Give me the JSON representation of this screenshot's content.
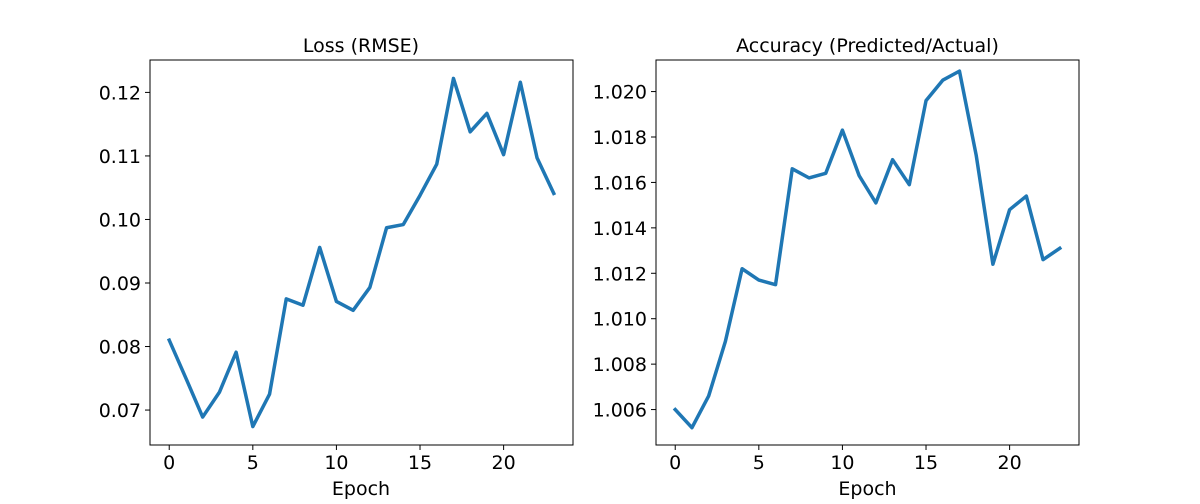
{
  "chart_data": [
    {
      "type": "line",
      "title": "Loss (RMSE)",
      "xlabel": "Epoch",
      "ylabel": "",
      "xlim": [
        -1.15,
        24.15
      ],
      "ylim": [
        0.0645,
        0.1251
      ],
      "xticks": [
        0,
        5,
        10,
        15,
        20
      ],
      "xtick_labels": [
        "0",
        "5",
        "10",
        "15",
        "20"
      ],
      "yticks": [
        0.07,
        0.08,
        0.09,
        0.1,
        0.11,
        0.12
      ],
      "ytick_labels": [
        "0.07",
        "0.08",
        "0.09",
        "0.10",
        "0.11",
        "0.12"
      ],
      "grid": false,
      "series": [
        {
          "color": "#1f77b4",
          "x": [
            0,
            1,
            2,
            3,
            4,
            5,
            6,
            7,
            8,
            9,
            10,
            11,
            12,
            13,
            14,
            15,
            16,
            17,
            18,
            19,
            20,
            21,
            22,
            23
          ],
          "y": [
            0.081,
            0.075,
            0.0689,
            0.0728,
            0.0791,
            0.0674,
            0.0725,
            0.0875,
            0.0865,
            0.0956,
            0.0871,
            0.0857,
            0.0893,
            0.0987,
            0.0992,
            0.1038,
            0.1087,
            0.1222,
            0.1138,
            0.1167,
            0.1102,
            0.1216,
            0.1097,
            0.1041
          ]
        }
      ]
    },
    {
      "type": "line",
      "title": "Accuracy (Predicted/Actual)",
      "xlabel": "Epoch",
      "ylabel": "",
      "xlim": [
        -1.15,
        24.15
      ],
      "ylim": [
        1.00444,
        1.02139
      ],
      "xticks": [
        0,
        5,
        10,
        15,
        20
      ],
      "xtick_labels": [
        "0",
        "5",
        "10",
        "15",
        "20"
      ],
      "yticks": [
        1.006,
        1.008,
        1.01,
        1.012,
        1.014,
        1.016,
        1.018,
        1.02
      ],
      "ytick_labels": [
        "1.006",
        "1.008",
        "1.010",
        "1.012",
        "1.014",
        "1.016",
        "1.018",
        "1.020"
      ],
      "grid": false,
      "series": [
        {
          "color": "#1f77b4",
          "x": [
            0,
            1,
            2,
            3,
            4,
            5,
            6,
            7,
            8,
            9,
            10,
            11,
            12,
            13,
            14,
            15,
            16,
            17,
            18,
            19,
            20,
            21,
            22,
            23
          ],
          "y": [
            1.006,
            1.0052,
            1.0066,
            1.009,
            1.0122,
            1.0117,
            1.0115,
            1.0166,
            1.0162,
            1.0164,
            1.0183,
            1.0163,
            1.0151,
            1.017,
            1.0159,
            1.0196,
            1.0205,
            1.0209,
            1.0172,
            1.0124,
            1.0148,
            1.0154,
            1.0126,
            1.0131
          ]
        }
      ]
    }
  ]
}
